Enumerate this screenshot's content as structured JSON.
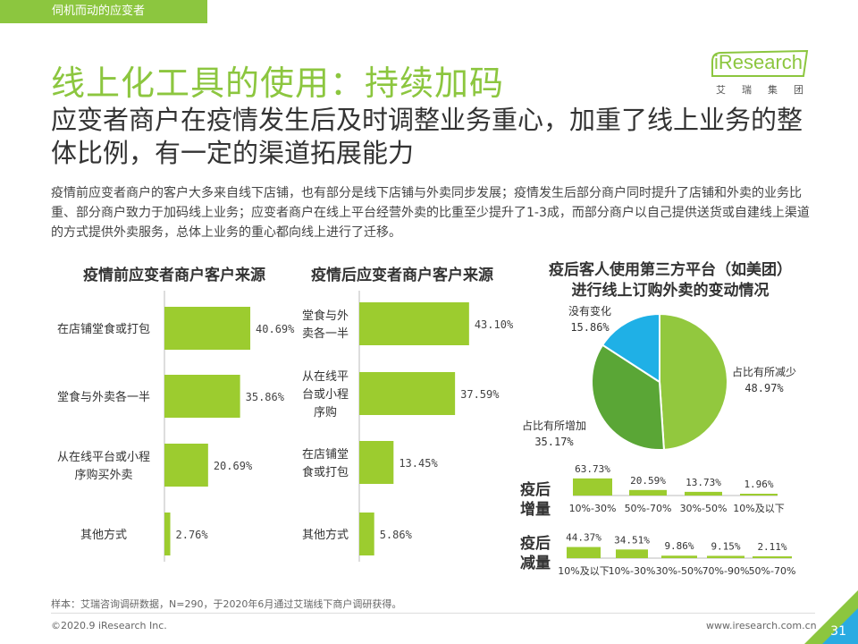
{
  "header": {
    "section_tag": "伺机而动的应变者",
    "title": "线上化工具的使用：持续加码",
    "subtitle": "应变者商户在疫情发生后及时调整业务重心，加重了线上业务的整体比例，有一定的渠道拓展能力",
    "intro": "疫情前应变者商户的客户大多来自线下店铺，也有部分是线下店铺与外卖同步发展；疫情发生后部分商户同时提升了店铺和外卖的业务比重、部分商户致力于加码线上业务；应变者商户在线上平台经营外卖的比重至少提升了1-3成，而部分商户以自己提供送货或自建线上渠道的方式提供外卖服务，总体上业务的重心都向线上进行了迁移。"
  },
  "logo": {
    "text": "iResearch",
    "sub": "艾瑞集团"
  },
  "colors": {
    "accent": "#8cc63f",
    "bar": "#9ccc2f",
    "pie_light": "#92c83e",
    "pie_dark": "#5aa636",
    "pie_blue": "#1fb0e6"
  },
  "chart_data": [
    {
      "type": "bar",
      "orientation": "horizontal",
      "title": "疫情前应变者商户客户来源",
      "categories": [
        "在店铺堂食或打包",
        "堂食与外卖各一半",
        "从在线平台或小程序购买外卖",
        "其他方式"
      ],
      "category_lines": [
        [
          "在店铺堂食或打包"
        ],
        [
          "堂食与外卖各一半"
        ],
        [
          "从在线平台或小程",
          "序购买外卖"
        ],
        [
          "其他方式"
        ]
      ],
      "values": [
        40.69,
        35.86,
        20.69,
        2.76
      ],
      "labels": [
        "40.69%",
        "35.86%",
        "20.69%",
        "2.76%"
      ]
    },
    {
      "type": "bar",
      "orientation": "horizontal",
      "title": "疫情后应变者商户客户来源",
      "categories": [
        "堂食与外卖各一半",
        "从在线平台或小程序购",
        "在店铺堂食或打包",
        "其他方式"
      ],
      "category_lines": [
        [
          "堂食与外",
          "卖各一半"
        ],
        [
          "从在线平",
          "台或小程",
          "序购"
        ],
        [
          "在店铺堂",
          "食或打包"
        ],
        [
          "其他方式"
        ]
      ],
      "values": [
        43.1,
        37.59,
        13.45,
        5.86
      ],
      "labels": [
        "43.10%",
        "37.59%",
        "13.45%",
        "5.86%"
      ]
    },
    {
      "type": "pie",
      "title": "疫后客人使用第三方平台（如美团）进行线上订购外卖的变动情况",
      "title_lines": [
        "疫后客人使用第三方平台（如美团）",
        "进行线上订购外卖的变动情况"
      ],
      "slices": [
        {
          "name": "占比有所减少",
          "value": 48.97,
          "label": "48.97%"
        },
        {
          "name": "占比有所增加",
          "value": 35.17,
          "label": "35.17%"
        },
        {
          "name": "没有变化",
          "value": 15.86,
          "label": "15.86%"
        }
      ]
    },
    {
      "type": "bar",
      "title": "疫后增量",
      "title_lines": [
        "疫后",
        "增量"
      ],
      "categories": [
        "10%-30%",
        "50%-70%",
        "30%-50%",
        "10%及以下"
      ],
      "values": [
        63.73,
        20.59,
        13.73,
        1.96
      ],
      "labels": [
        "63.73%",
        "20.59%",
        "13.73%",
        "1.96%"
      ]
    },
    {
      "type": "bar",
      "title": "疫后减量",
      "title_lines": [
        "疫后",
        "减量"
      ],
      "categories": [
        "10%及以下",
        "10%-30%",
        "30%-50%",
        "70%-90%",
        "50%-70%"
      ],
      "values": [
        44.37,
        34.51,
        9.86,
        9.15,
        2.11
      ],
      "labels": [
        "44.37%",
        "34.51%",
        "9.86%",
        "9.15%",
        "2.11%"
      ]
    }
  ],
  "footer": {
    "source": "样本：艾瑞咨询调研数据，N=290，于2020年6月通过艾瑞线下商户调研获得。",
    "copyright": "©2020.9 iResearch Inc.",
    "website": "www.iresearch.com.cn",
    "page": "31"
  }
}
